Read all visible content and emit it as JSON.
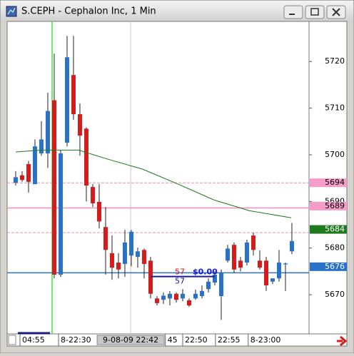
{
  "chart_data": {
    "type": "candlestick",
    "title": "S.CEPH - Cephalon Inc, 1 Min",
    "x": [
      0,
      1,
      2,
      3,
      4,
      5,
      6,
      7,
      8,
      9,
      10,
      11,
      12,
      13,
      14,
      15,
      16,
      17,
      18,
      19,
      20,
      21,
      22,
      23,
      24,
      25,
      26,
      27,
      28,
      29,
      30,
      31,
      32,
      33,
      34,
      35,
      36,
      37,
      38,
      39,
      40,
      41,
      42,
      43
    ],
    "open": [
      5694.0,
      5695.6,
      5698.0,
      5693.7,
      5700.3,
      5700.3,
      5711.7,
      5674.3,
      5702.6,
      5717.1,
      5708.7,
      5705.6,
      5693.1,
      5689.9,
      5684.5,
      5678.9,
      5676.9,
      5676.6,
      5678.4,
      5678.1,
      5679.6,
      5677.3,
      5669.2,
      5668.9,
      5669.2,
      5670.2,
      5669.2,
      5668.8,
      5669.2,
      5669.7,
      5671.2,
      5672.6,
      5669.7,
      5677.3,
      5680.7,
      5677.3,
      5676.9,
      5682.7,
      5677.3,
      5677.3,
      5672.8,
      5673.5,
      5676.5,
      5679.3
    ],
    "high": [
      5696.5,
      5696.5,
      5698.7,
      5703.3,
      5707.2,
      5713.3,
      5721.7,
      5701.0,
      5725.5,
      5725.5,
      5711.0,
      5705.9,
      5693.7,
      5693.7,
      5688.8,
      5682.7,
      5678.9,
      5683.9,
      5683.9,
      5680.1,
      5679.9,
      5678.1,
      5669.7,
      5670.5,
      5670.8,
      5670.5,
      5671.2,
      5669.2,
      5671.1,
      5672.0,
      5673.5,
      5675.0,
      5675.4,
      5680.7,
      5681.2,
      5678.1,
      5681.8,
      5683.3,
      5679.5,
      5678.1,
      5673.5,
      5679.6,
      5676.9,
      5685.4
    ],
    "low": [
      5693.4,
      5694.2,
      5691.9,
      5693.7,
      5699.8,
      5697.2,
      5673.5,
      5673.8,
      5701.8,
      5707.5,
      5699.8,
      5690.0,
      5688.8,
      5684.2,
      5674.3,
      5673.2,
      5673.5,
      5673.8,
      5676.1,
      5675.8,
      5673.5,
      5669.2,
      5667.7,
      5668.0,
      5667.7,
      5668.3,
      5668.6,
      5667.4,
      5668.9,
      5669.2,
      5670.5,
      5672.0,
      5664.6,
      5676.9,
      5674.7,
      5675.0,
      5676.3,
      5678.4,
      5675.4,
      5670.8,
      5672.3,
      5672.8,
      5670.8,
      5678.7
    ],
    "close": [
      5695.2,
      5694.6,
      5694.2,
      5701.8,
      5703.3,
      5709.4,
      5674.3,
      5700.3,
      5720.9,
      5708.7,
      5704.1,
      5693.4,
      5689.6,
      5685.7,
      5679.6,
      5675.8,
      5675.4,
      5681.2,
      5683.5,
      5679.3,
      5676.6,
      5670.2,
      5668.2,
      5669.8,
      5670.2,
      5668.9,
      5670.2,
      5667.7,
      5670.2,
      5670.8,
      5672.8,
      5674.3,
      5674.7,
      5679.9,
      5675.4,
      5675.8,
      5681.2,
      5679.6,
      5675.8,
      5672.0,
      5673.5,
      5676.9,
      5676.7,
      5681.5
    ],
    "up_color": "#2a72c8",
    "down_color": "#d41c1c",
    "xlim": [
      -1.33,
      45.67
    ],
    "ylim": [
      5661.6,
      5728.6
    ],
    "yticks": [
      5670,
      5680,
      5690,
      5700,
      5710,
      5720
    ],
    "xticks": [
      {
        "value": 0.67,
        "label": "04:55"
      },
      {
        "value": 6.67,
        "label": "8-22:30"
      },
      {
        "value": 23.3,
        "label": "45"
      },
      {
        "value": 26,
        "label": "22:50"
      },
      {
        "value": 31.1,
        "label": "22:55"
      },
      {
        "value": 36.2,
        "label": "8-23:00"
      }
    ],
    "cursor": {
      "value": 17.9,
      "label": "9-08-09 22:42"
    },
    "moving_average": {
      "color": "#1a7a1a",
      "x": [
        0,
        4,
        9.8,
        14,
        19.8,
        25.3,
        30.9,
        36.4,
        42.9
      ],
      "values": [
        5700.6,
        5701.0,
        5701.0,
        5699.2,
        5696.9,
        5693.7,
        5690.3,
        5688.0,
        5686.5
      ]
    },
    "level_lines": [
      {
        "value": 5694,
        "color": "#f08cbf",
        "style": "dashed"
      },
      {
        "value": 5688.6,
        "color": "#f08cbf",
        "style": "solid"
      },
      {
        "value": 5683.3,
        "color": "#f08cbf",
        "style": "dashed"
      },
      {
        "value": 5674.7,
        "color": "#2a72c8",
        "style": "solid"
      }
    ],
    "price_tags": [
      {
        "value": 5694,
        "color": "#f59cc8"
      },
      {
        "value": 5689,
        "color": "#f59cc8"
      },
      {
        "value": 5684,
        "color": "#1f7a1f"
      },
      {
        "value": 5676,
        "color": "#2a72c8"
      }
    ],
    "order_line": {
      "value": 5673.9,
      "x": [
        21,
        31
      ],
      "color": "#1a1aa0"
    },
    "order_labels": [
      {
        "text": "57",
        "color": "#c01818"
      },
      {
        "text": "57",
        "color": "#1a1aa0"
      },
      {
        "text": "$0.00",
        "color": "#1a1ad0"
      }
    ]
  }
}
